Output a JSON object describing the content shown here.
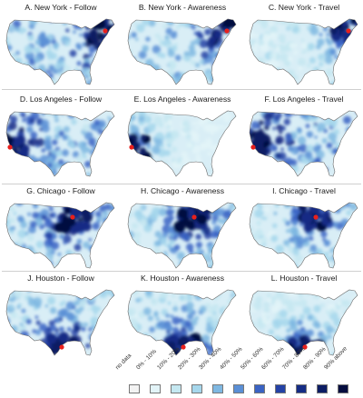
{
  "panels": [
    {
      "title": "A. New York - Follow",
      "city": "New York",
      "metric": "Follow",
      "hotspot": "northeast",
      "intensity": 0.55
    },
    {
      "title": "B. New York - Awareness",
      "city": "New York",
      "metric": "Awareness",
      "hotspot": "northeast",
      "intensity": 0.45
    },
    {
      "title": "C. New York - Travel",
      "city": "New York",
      "metric": "Travel",
      "hotspot": "northeast",
      "intensity": 0.25
    },
    {
      "title": "D. Los Angeles - Follow",
      "city": "Los Angeles",
      "metric": "Follow",
      "hotspot": "southwest",
      "intensity": 0.55
    },
    {
      "title": "E. Los Angeles - Awareness",
      "city": "Los Angeles",
      "metric": "Awareness",
      "hotspot": "southwest",
      "intensity": 0.15
    },
    {
      "title": "F. Los Angeles - Travel",
      "city": "Los Angeles",
      "metric": "Travel",
      "hotspot": "southwest",
      "intensity": 0.6
    },
    {
      "title": "G. Chicago - Follow",
      "city": "Chicago",
      "metric": "Follow",
      "hotspot": "midwest",
      "intensity": 0.45
    },
    {
      "title": "H. Chicago - Awareness",
      "city": "Chicago",
      "metric": "Awareness",
      "hotspot": "midwest",
      "intensity": 0.4
    },
    {
      "title": "I. Chicago - Travel",
      "city": "Chicago",
      "metric": "Travel",
      "hotspot": "midwest",
      "intensity": 0.3
    },
    {
      "title": "J. Houston - Follow",
      "city": "Houston",
      "metric": "Follow",
      "hotspot": "south",
      "intensity": 0.45
    },
    {
      "title": "K. Houston - Awareness",
      "city": "Houston",
      "metric": "Awareness",
      "hotspot": "south",
      "intensity": 0.35
    },
    {
      "title": "L. Houston - Travel",
      "city": "Houston",
      "metric": "Travel",
      "hotspot": "south",
      "intensity": 0.2
    }
  ],
  "legend": [
    {
      "label": "no data",
      "color": "#f3f3f3"
    },
    {
      "label": "0% - 10%",
      "color": "#e3f4f8"
    },
    {
      "label": "10% - 20%",
      "color": "#c5e8f1"
    },
    {
      "label": "20% - 30%",
      "color": "#a6d7ec"
    },
    {
      "label": "30% - 40%",
      "color": "#7fb8e2"
    },
    {
      "label": "40% - 50%",
      "color": "#5a8fd6"
    },
    {
      "label": "50% - 60%",
      "color": "#3a63c4"
    },
    {
      "label": "60% - 70%",
      "color": "#2442a6"
    },
    {
      "label": "70% - 80%",
      "color": "#152c85"
    },
    {
      "label": "80% - 90%",
      "color": "#0c1c64"
    },
    {
      "label": "90% above",
      "color": "#050d3f"
    }
  ],
  "colors": {
    "background_fill": "#d9eef6",
    "city_marker": "#e8201c",
    "border": "#6b6b6b"
  }
}
